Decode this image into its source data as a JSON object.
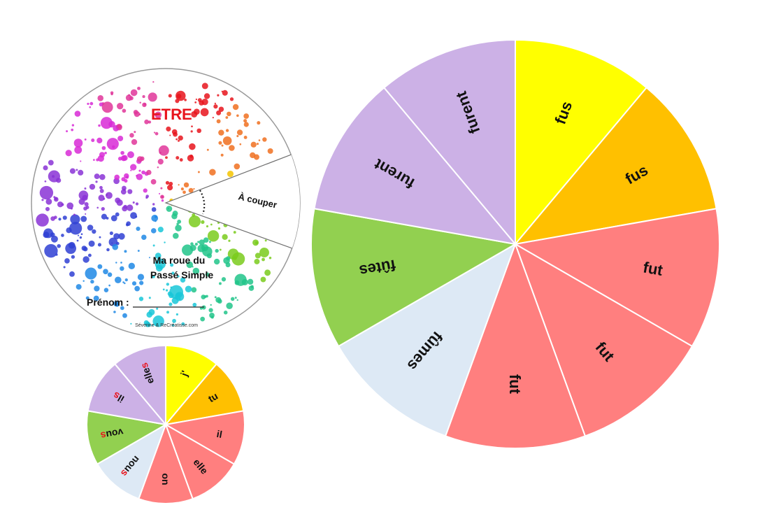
{
  "cover": {
    "title": "ETRE",
    "cut_label": "À couper",
    "subtitle_line1": "Ma roue du",
    "subtitle_line2": "Passé Simple",
    "name_label": "Prénom :",
    "credit": "Séverine & ReCréatisse.com",
    "title_color": "#e8141c"
  },
  "big_wheel": {
    "segments": [
      {
        "label": "fus",
        "color": "#ffff00"
      },
      {
        "label": "fus",
        "color": "#ffc000"
      },
      {
        "label": "fut",
        "color": "#ff7f7f"
      },
      {
        "label": "fut",
        "color": "#ff7f7f"
      },
      {
        "label": "fut",
        "color": "#ff7f7f"
      },
      {
        "label": "fûmes",
        "color": "#dde9f5"
      },
      {
        "label": "fûtes",
        "color": "#92d050"
      },
      {
        "label": "furent",
        "color": "#ccb1e6"
      },
      {
        "label": "furent",
        "color": "#ccb1e6"
      }
    ]
  },
  "small_wheel": {
    "segments": [
      {
        "label": "j'",
        "suffix": "",
        "color": "#ffff00"
      },
      {
        "label": "tu",
        "suffix": "",
        "color": "#ffc000"
      },
      {
        "label": "il",
        "suffix": "",
        "color": "#ff7f7f"
      },
      {
        "label": "elle",
        "suffix": "",
        "color": "#ff7f7f"
      },
      {
        "label": "on",
        "suffix": "",
        "color": "#ff7f7f"
      },
      {
        "label": "nou",
        "suffix": "s",
        "color": "#dde9f5"
      },
      {
        "label": "vou",
        "suffix": "s",
        "color": "#92d050"
      },
      {
        "label": "il",
        "suffix": "s",
        "color": "#ccb1e6"
      },
      {
        "label": "elle",
        "suffix": "s",
        "color": "#ccb1e6"
      }
    ],
    "suffix_color": "#e8141c"
  }
}
